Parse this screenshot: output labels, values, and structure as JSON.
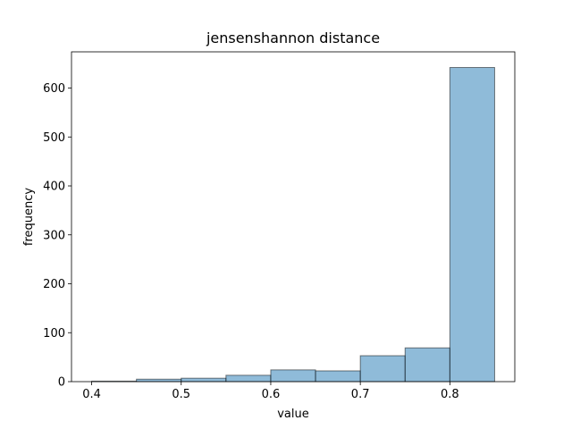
{
  "chart_data": {
    "type": "bar",
    "title": "jensenshannon distance",
    "xlabel": "value",
    "ylabel": "frequency",
    "bins": [
      {
        "start": 0.4,
        "end": 0.45,
        "count": 1
      },
      {
        "start": 0.45,
        "end": 0.5,
        "count": 5
      },
      {
        "start": 0.5,
        "end": 0.55,
        "count": 7
      },
      {
        "start": 0.55,
        "end": 0.6,
        "count": 13
      },
      {
        "start": 0.6,
        "end": 0.65,
        "count": 24
      },
      {
        "start": 0.65,
        "end": 0.7,
        "count": 22
      },
      {
        "start": 0.7,
        "end": 0.75,
        "count": 53
      },
      {
        "start": 0.75,
        "end": 0.8,
        "count": 69
      },
      {
        "start": 0.8,
        "end": 0.85,
        "count": 642
      }
    ],
    "xlim": [
      0.3775,
      0.8725
    ],
    "ylim": [
      0,
      674
    ],
    "xticks": [
      "0.4",
      "0.5",
      "0.6",
      "0.7",
      "0.8"
    ],
    "yticks": [
      "0",
      "100",
      "200",
      "300",
      "400",
      "500",
      "600"
    ],
    "bar_color": "#1f77b4",
    "bar_alpha": 0.5,
    "edge_color": "#000000",
    "grid": false,
    "legend": false
  }
}
